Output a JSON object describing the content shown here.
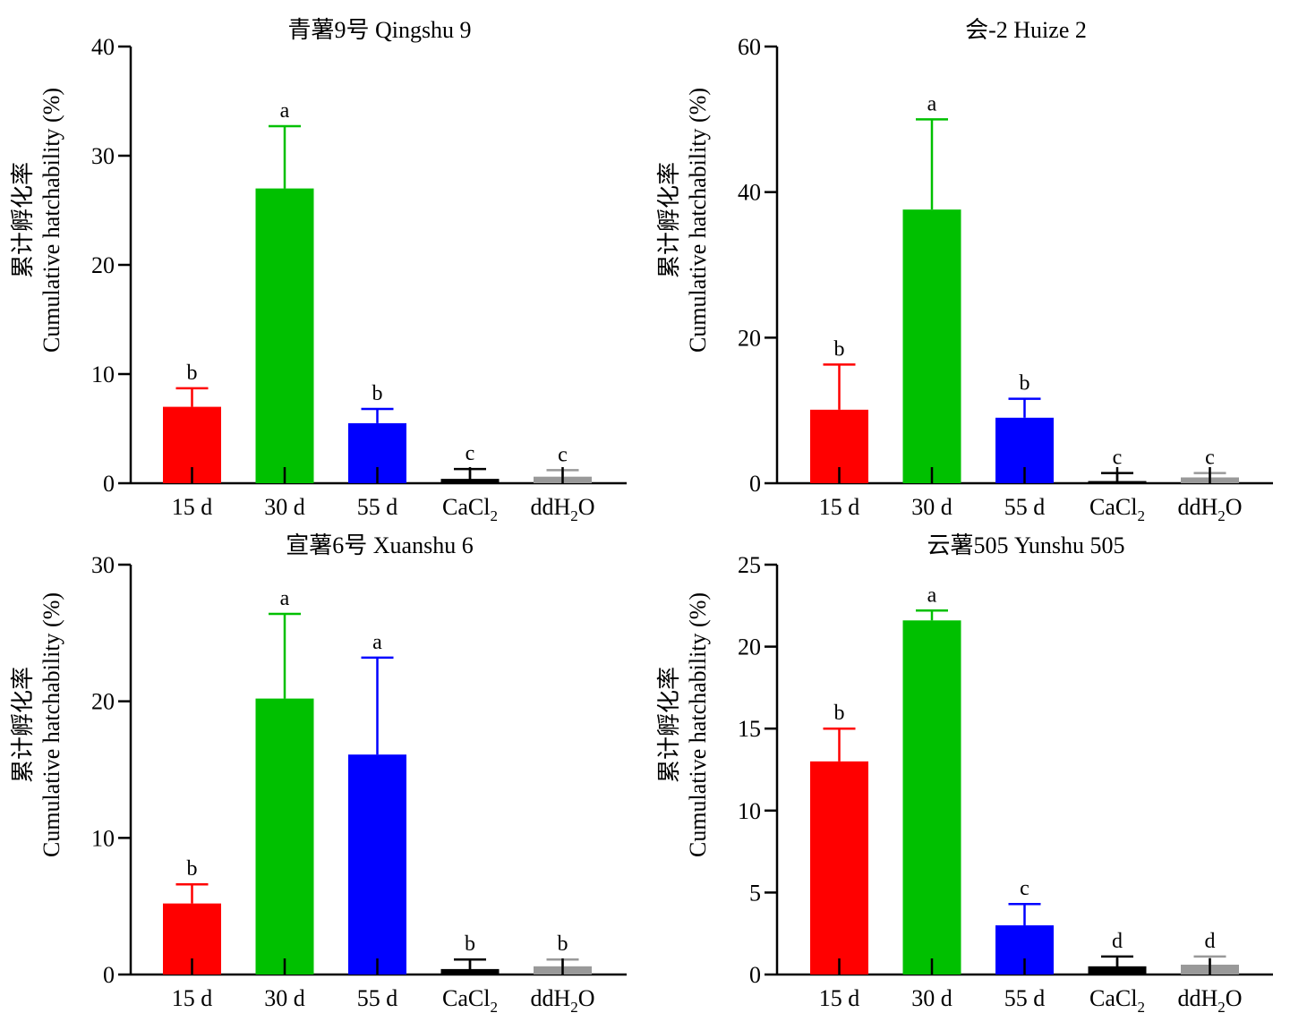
{
  "figure": {
    "ylabel_zh": "累计孵化率",
    "ylabel_en": "Cumulative hatchability (%)",
    "categories": [
      {
        "text": "15 d"
      },
      {
        "text": "30 d"
      },
      {
        "text": "55 d"
      },
      {
        "text": "CaCl",
        "sub": "2"
      },
      {
        "text": "ddH",
        "sub": "2",
        "after": "O"
      }
    ],
    "colors": [
      "#ff0000",
      "#00c000",
      "#0000ff",
      "#000000",
      "#999999"
    ]
  },
  "chart_data": [
    {
      "type": "bar",
      "title": "青薯9号 Qingshu 9",
      "categories": [
        "15 d",
        "30 d",
        "55 d",
        "CaCl2",
        "ddH2O"
      ],
      "values": [
        7.0,
        27.0,
        5.5,
        0.4,
        0.6
      ],
      "error_upper": [
        1.7,
        5.7,
        1.3,
        0.9,
        0.6
      ],
      "significance": [
        "b",
        "a",
        "b",
        "c",
        "c"
      ],
      "ylabel": "累计孵化率 Cumulative hatchability (%)",
      "ylim": [
        0,
        40
      ],
      "yticks": [
        0,
        10,
        20,
        30,
        40
      ]
    },
    {
      "type": "bar",
      "title": "会-2 Huize 2",
      "categories": [
        "15 d",
        "30 d",
        "55 d",
        "CaCl2",
        "ddH2O"
      ],
      "values": [
        10.1,
        37.6,
        9.0,
        0.3,
        0.8
      ],
      "error_upper": [
        6.2,
        12.4,
        2.6,
        1.1,
        0.6
      ],
      "significance": [
        "b",
        "a",
        "b",
        "c",
        "c"
      ],
      "ylabel": "累计孵化率 Cumulative hatchability (%)",
      "ylim": [
        0,
        60
      ],
      "yticks": [
        0,
        20,
        40,
        60
      ]
    },
    {
      "type": "bar",
      "title": "宣薯6号 Xuanshu 6",
      "categories": [
        "15 d",
        "30 d",
        "55 d",
        "CaCl2",
        "ddH2O"
      ],
      "values": [
        5.2,
        20.2,
        16.1,
        0.4,
        0.6
      ],
      "error_upper": [
        1.4,
        6.2,
        7.1,
        0.7,
        0.5
      ],
      "significance": [
        "b",
        "a",
        "a",
        "b",
        "b"
      ],
      "ylabel": "累计孵化率 Cumulative hatchability (%)",
      "ylim": [
        0,
        30
      ],
      "yticks": [
        0,
        10,
        20,
        30
      ]
    },
    {
      "type": "bar",
      "title": "云薯505 Yunshu 505",
      "categories": [
        "15 d",
        "30 d",
        "55 d",
        "CaCl2",
        "ddH2O"
      ],
      "values": [
        13.0,
        21.6,
        3.0,
        0.5,
        0.6
      ],
      "error_upper": [
        2.0,
        0.6,
        1.3,
        0.6,
        0.5
      ],
      "significance": [
        "b",
        "a",
        "c",
        "d",
        "d"
      ],
      "ylabel": "累计孵化率 Cumulative hatchability (%)",
      "ylim": [
        0,
        25
      ],
      "yticks": [
        0,
        5,
        10,
        15,
        20,
        25
      ]
    }
  ]
}
